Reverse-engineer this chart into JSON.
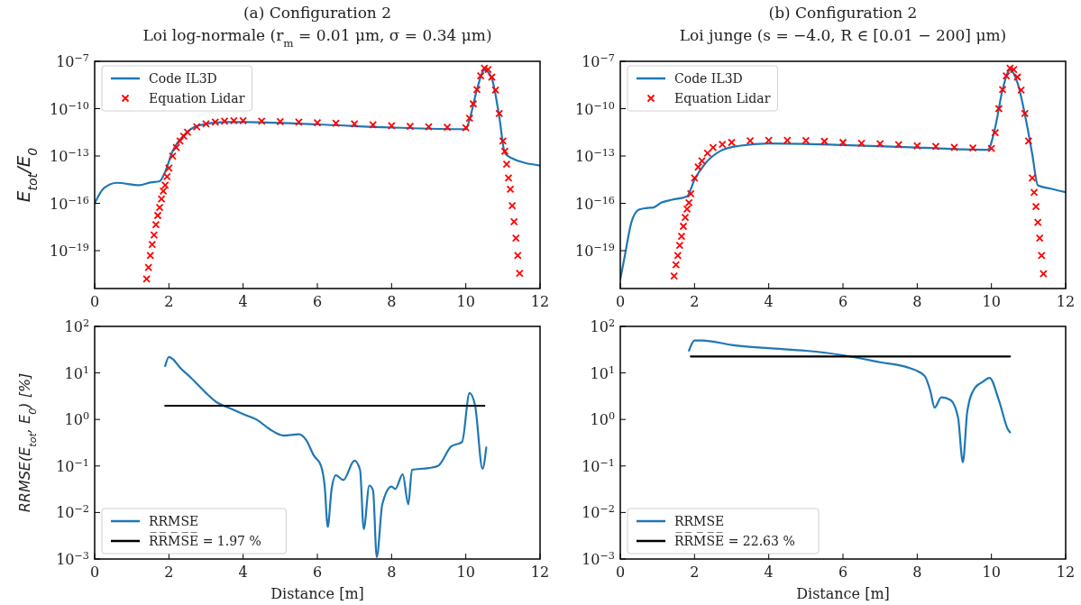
{
  "chart_data": [
    {
      "type": "line",
      "title": "(a) Configuration 2",
      "subtitle": "Loi log-normale (r$_{m}$ = 0.01 μm, σ = 0.34 μm)",
      "ylabel": "E$_{tot}$/E$_{0}$",
      "log": "y",
      "legend": "top left",
      "xlim": [
        0,
        12
      ],
      "xticks": [
        0,
        2,
        4,
        6,
        8,
        10,
        12
      ],
      "ylim": [
        4e-22,
        1e-07
      ],
      "yticks": [
        {
          "value": 1e-07,
          "label": "10$^{−7}$"
        },
        {
          "value": 1e-10,
          "label": "10$^{−10}$"
        },
        {
          "value": 1e-13,
          "label": "10$^{−13}$"
        },
        {
          "value": 1e-16,
          "label": "10$^{−16}$"
        },
        {
          "value": 1e-19,
          "label": "10$^{−19}$"
        }
      ],
      "series": [
        {
          "name": "Code IL3D",
          "type": "line",
          "color": "#1f77b4",
          "x": [
            0,
            0.25,
            0.6,
            1.2,
            1.5,
            1.75,
            1.9,
            2.1,
            2.4,
            2.8,
            3.5,
            4,
            6,
            8,
            10,
            10.1,
            10.3,
            10.5,
            10.7,
            10.9,
            11.05,
            11.2,
            12
          ],
          "values": [
            1e-16,
            9.3e-16,
            2e-15,
            1.4e-15,
            2.1e-15,
            2.5e-15,
            1e-14,
            2e-13,
            2e-12,
            8.7e-12,
            1.4e-11,
            1.4e-11,
            1e-11,
            6.3e-12,
            5e-12,
            2e-11,
            1.6e-09,
            2.8e-08,
            8e-09,
            3.2e-11,
            1.6e-13,
            8e-14,
            2.5e-14
          ]
        },
        {
          "name": "Equation Lidar",
          "type": "scatter",
          "marker": "cross",
          "color": "#ff0000",
          "x": [
            1.4,
            1.45,
            1.5,
            1.55,
            1.6,
            1.65,
            1.7,
            1.75,
            1.8,
            1.85,
            1.9,
            1.95,
            2.0,
            2.1,
            2.2,
            2.3,
            2.4,
            2.5,
            2.75,
            3.0,
            3.25,
            3.5,
            3.75,
            4,
            4.5,
            5,
            5.5,
            6,
            6.5,
            7,
            7.5,
            8,
            8.5,
            9,
            9.5,
            10,
            10.1,
            10.2,
            10.3,
            10.4,
            10.5,
            10.6,
            10.7,
            10.8,
            10.9,
            11.0,
            11.05,
            11.1,
            11.15,
            11.2,
            11.25,
            11.3,
            11.35,
            11.4,
            11.45
          ],
          "values": [
            1.6e-21,
            8.7e-21,
            5e-20,
            2.5e-19,
            1e-18,
            4.5e-18,
            1.7e-17,
            5.5e-17,
            1.9e-16,
            6e-16,
            1.4e-15,
            5e-15,
            1.7e-14,
            1e-13,
            3.4e-13,
            9e-13,
            1.8e-12,
            3.2e-12,
            7e-12,
            1.1e-11,
            1.4e-11,
            1.6e-11,
            1.7e-11,
            1.7e-11,
            1.6e-11,
            1.5e-11,
            1.4e-11,
            1.3e-11,
            1.2e-11,
            1.1e-11,
            9.5e-12,
            8.3e-12,
            7.5e-12,
            7e-12,
            6.6e-12,
            6.3e-12,
            2.5e-11,
            2e-10,
            1.6e-09,
            1.2e-08,
            3.7e-08,
            3e-08,
            1e-08,
            1.5e-09,
            5e-11,
            9e-13,
            2e-13,
            3e-14,
            4e-15,
            7.9e-16,
            7e-17,
            6.8e-18,
            6.3e-19,
            5e-20,
            3.7e-21
          ]
        }
      ]
    },
    {
      "type": "line",
      "title": "(b) Configuration 2",
      "subtitle": "Loi junge (s = −4.0, R ∈ [0.01 − 200] μm)",
      "log": "y",
      "legend": "top left",
      "xlim": [
        0,
        12
      ],
      "xticks": [
        0,
        2,
        4,
        6,
        8,
        10,
        12
      ],
      "ylim": [
        4e-22,
        1e-07
      ],
      "yticks": [
        {
          "value": 1e-07,
          "label": "10$^{−7}$"
        },
        {
          "value": 1e-10,
          "label": "10$^{−10}$"
        },
        {
          "value": 1e-13,
          "label": "10$^{−13}$"
        },
        {
          "value": 1e-16,
          "label": "10$^{−16}$"
        },
        {
          "value": 1e-19,
          "label": "10$^{−19}$"
        }
      ],
      "series": [
        {
          "name": "Code IL3D",
          "type": "line",
          "color": "#1f77b4",
          "x": [
            0,
            0.1,
            0.3,
            0.5,
            0.7,
            0.9,
            1.1,
            1.4,
            1.8,
            2.0,
            2.3,
            2.7,
            3.2,
            4,
            6,
            8,
            9.9,
            10.1,
            10.3,
            10.5,
            10.7,
            10.95,
            11.1,
            11.25,
            11.6,
            12
          ],
          "values": [
            1.6e-21,
            2.5e-20,
            6.3e-18,
            4e-17,
            5e-17,
            5.5e-17,
            1.1e-16,
            1.7e-16,
            2.8e-16,
            3.2e-15,
            3.6e-14,
            2.1e-13,
            4.4e-13,
            6.3e-13,
            5e-13,
            3.4e-13,
            2.5e-13,
            6.3e-12,
            1.6e-09,
            2.8e-08,
            4.5e-09,
            1.1e-11,
            1.3e-13,
            1.4e-15,
            8.5e-16,
            5.1e-16
          ]
        },
        {
          "name": "Equation Lidar",
          "type": "scatter",
          "marker": "cross",
          "color": "#ff0000",
          "x": [
            1.45,
            1.5,
            1.55,
            1.6,
            1.65,
            1.7,
            1.75,
            1.8,
            1.85,
            1.9,
            2.0,
            2.1,
            2.2,
            2.35,
            2.5,
            2.75,
            3.0,
            3.5,
            4,
            4.5,
            5,
            5.5,
            6,
            6.5,
            7,
            7.5,
            8,
            8.5,
            9,
            9.5,
            10,
            10.1,
            10.2,
            10.3,
            10.4,
            10.5,
            10.6,
            10.7,
            10.8,
            10.9,
            11.0,
            11.1,
            11.15,
            11.2,
            11.25,
            11.3,
            11.35,
            11.4
          ],
          "values": [
            2.5e-21,
            1.3e-20,
            5e-20,
            2.2e-19,
            8e-19,
            3.5e-18,
            1.3e-17,
            4.3e-17,
            1.1e-16,
            4e-16,
            4e-15,
            2e-14,
            5e-14,
            1.5e-13,
            3.4e-13,
            5.5e-13,
            7.2e-13,
            9.3e-13,
            1e-12,
            1e-12,
            9.5e-13,
            8.5e-13,
            7.2e-13,
            6.5e-13,
            6e-13,
            5.2e-13,
            4.4e-13,
            4e-13,
            3.6e-13,
            3.2e-13,
            3e-13,
            3e-12,
            1e-10,
            1.6e-09,
            1.2e-08,
            3.7e-08,
            3e-08,
            1e-08,
            1.5e-09,
            5e-11,
            9e-13,
            4e-15,
            5e-16,
            6.3e-17,
            6.3e-18,
            6.3e-19,
            5e-20,
            3.5e-21
          ]
        }
      ]
    },
    {
      "type": "line",
      "xlabel": "Distance [m]",
      "ylabel": "RRMSE(E$_{tot}$, E$_{0}$) [%]",
      "log": "y",
      "legend": "bottom left",
      "xlim": [
        0,
        12
      ],
      "xticks": [
        0,
        2,
        4,
        6,
        8,
        10,
        12
      ],
      "ylim": [
        0.001,
        100
      ],
      "yticks": [
        {
          "value": 0.001,
          "label": "10$^{−3}$"
        },
        {
          "value": 0.01,
          "label": "10$^{−2}$"
        },
        {
          "value": 0.1,
          "label": "10$^{−1}$"
        },
        {
          "value": 1,
          "label": "10$^{0}$"
        },
        {
          "value": 10,
          "label": "10$^{1}$"
        },
        {
          "value": 100,
          "label": "10$^{2}$"
        }
      ],
      "series": [
        {
          "name": "RRMSE",
          "type": "line",
          "color": "#1f77b4",
          "x": [
            1.9,
            2.0,
            2.1,
            2.3,
            2.6,
            3.0,
            3.3,
            3.6,
            4.0,
            4.4,
            4.7,
            5.1,
            5.5,
            5.7,
            5.9,
            6.1,
            6.2,
            6.28,
            6.38,
            6.5,
            6.7,
            7.0,
            7.15,
            7.25,
            7.4,
            7.5,
            7.6,
            7.75,
            8.0,
            8.1,
            8.3,
            8.45,
            8.55,
            9.0,
            9.25,
            9.6,
            9.9,
            10.1,
            10.25,
            10.45,
            10.55
          ],
          "values": [
            14,
            22,
            20,
            13,
            7.8,
            3.7,
            2.3,
            1.8,
            1.3,
            0.95,
            0.63,
            0.45,
            0.48,
            0.36,
            0.17,
            0.1,
            0.035,
            0.0049,
            0.03,
            0.063,
            0.05,
            0.13,
            0.083,
            0.0044,
            0.038,
            0.03,
            0.0011,
            0.015,
            0.036,
            0.032,
            0.066,
            0.015,
            0.083,
            0.09,
            0.1,
            0.26,
            0.33,
            3.7,
            2,
            0.087,
            0.25
          ]
        },
        {
          "name": "R̅R̅M̅S̅E̅ = 1.97 %",
          "type": "line",
          "color": "#000000",
          "x": [
            1.9,
            10.5
          ],
          "values": [
            1.97,
            1.97
          ]
        }
      ]
    },
    {
      "type": "line",
      "xlabel": "Distance [m]",
      "log": "y",
      "legend": "bottom left",
      "xlim": [
        0,
        12
      ],
      "xticks": [
        0,
        2,
        4,
        6,
        8,
        10,
        12
      ],
      "ylim": [
        0.001,
        100
      ],
      "yticks": [
        {
          "value": 0.001,
          "label": "10$^{−3}$"
        },
        {
          "value": 0.01,
          "label": "10$^{−2}$"
        },
        {
          "value": 0.1,
          "label": "10$^{−1}$"
        },
        {
          "value": 1,
          "label": "10$^{0}$"
        },
        {
          "value": 10,
          "label": "10$^{1}$"
        },
        {
          "value": 100,
          "label": "10$^{2}$"
        }
      ],
      "series": [
        {
          "name": "RRMSE",
          "type": "line",
          "color": "#1f77b4",
          "x": [
            1.85,
            2.0,
            2.2,
            3,
            4,
            5,
            6,
            7,
            7.8,
            8.2,
            8.35,
            8.47,
            8.65,
            8.9,
            9.1,
            9.23,
            9.35,
            9.55,
            9.75,
            9.95,
            10.2,
            10.45,
            10.5
          ],
          "values": [
            30,
            50,
            50,
            40,
            34,
            30,
            24,
            17,
            12.7,
            8.6,
            4.2,
            1.8,
            3.0,
            2.6,
            1.1,
            0.12,
            1.5,
            4.7,
            6.3,
            7.8,
            2.6,
            0.6,
            0.53
          ]
        },
        {
          "name": "R̅R̅M̅S̅E̅ = 22.63 %",
          "type": "line",
          "color": "#000000",
          "x": [
            1.9,
            10.5
          ],
          "values": [
            22.63,
            22.63
          ]
        }
      ]
    }
  ]
}
